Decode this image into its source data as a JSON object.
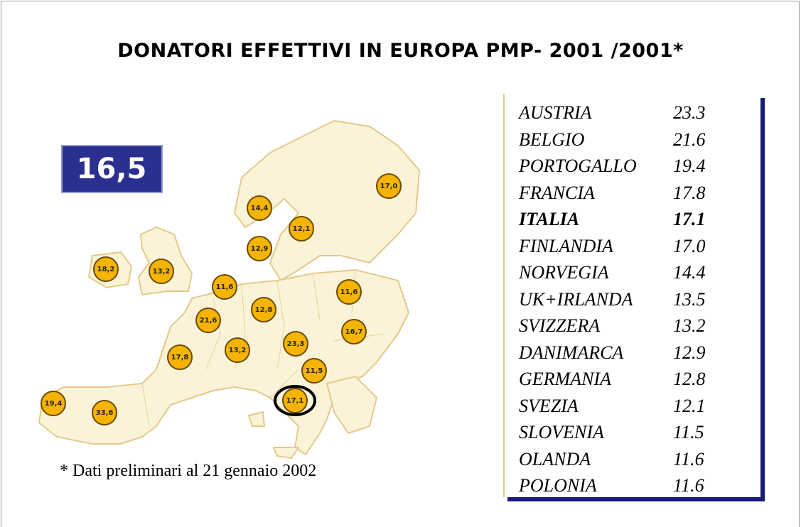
{
  "title": "DONATORI EFFETTIVI IN EUROPA PMP- 2001 /2001*",
  "map": {
    "badge": "16,5",
    "bubbles": [
      "17,0",
      "14,4",
      "12,1",
      "12,9",
      "18,2",
      "13,2",
      "11,6",
      "11,6",
      "12,8",
      "21,6",
      "16,7",
      "23,3",
      "13,2",
      "17,8",
      "11,5",
      "17,1",
      "19,4",
      "33,6"
    ]
  },
  "table": {
    "rows": [
      [
        "AUSTRIA",
        "23.3"
      ],
      [
        "BELGIO",
        "21.6"
      ],
      [
        "PORTOGALLO",
        "19.4"
      ],
      [
        "FRANCIA",
        "17.8"
      ],
      [
        "ITALIA",
        "17.1"
      ],
      [
        "FINLANDIA",
        "17.0"
      ],
      [
        "NORVEGIA",
        "14.4"
      ],
      [
        "UK+IRLANDA",
        "13.5"
      ],
      [
        "SVIZZERA",
        "13.2"
      ],
      [
        "DANIMARCA",
        "12.9"
      ],
      [
        "GERMANIA",
        "12.8"
      ],
      [
        "SVEZIA",
        "12.1"
      ],
      [
        "SLOVENIA",
        "11.5"
      ],
      [
        "OLANDA",
        "11.6"
      ],
      [
        "POLONIA",
        "11.6"
      ]
    ]
  },
  "footnote": "* Dati preliminari al 21 gennaio 2002"
}
